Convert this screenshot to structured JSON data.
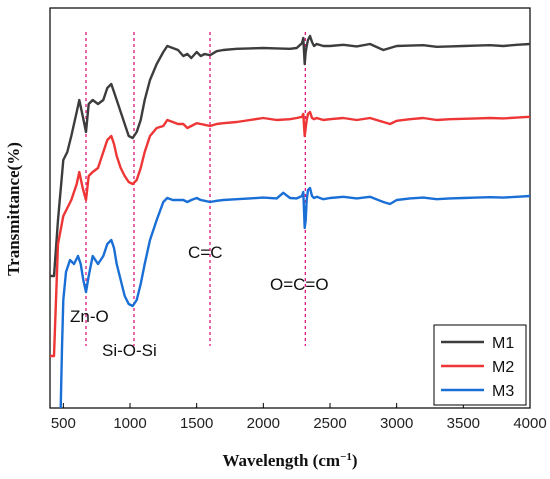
{
  "chart_data": {
    "type": "line",
    "title": "",
    "xlabel": "Wavelength (cm",
    "xlabel_sup": "−1",
    "xlabel_close": ")",
    "ylabel": "Transmittance(%)",
    "xlim": [
      400,
      4000
    ],
    "ylim": [
      0,
      1
    ],
    "xticks": [
      "500",
      "1000",
      "1500",
      "2000",
      "2500",
      "3000",
      "3500",
      "4000"
    ],
    "x_tick_values": [
      500,
      1000,
      1500,
      2000,
      2500,
      3000,
      3500,
      4000
    ],
    "y_ticks_labeled": false,
    "grid": false,
    "legend_position": "bottom-right",
    "series": [
      {
        "name": "M1",
        "color": "#3d3d3d",
        "x": [
          400,
          430,
          460,
          500,
          530,
          560,
          600,
          620,
          645,
          670,
          690,
          720,
          760,
          800,
          830,
          860,
          880,
          900,
          930,
          960,
          990,
          1020,
          1050,
          1080,
          1110,
          1150,
          1200,
          1250,
          1280,
          1320,
          1360,
          1400,
          1430,
          1460,
          1500,
          1530,
          1560,
          1600,
          1650,
          1700,
          1800,
          1900,
          2000,
          2100,
          2200,
          2250,
          2290,
          2300,
          2310,
          2318,
          2325,
          2335,
          2350,
          2365,
          2380,
          2400,
          2450,
          2500,
          2600,
          2700,
          2800,
          2900,
          2950,
          3000,
          3100,
          3200,
          3300,
          3400,
          3500,
          3600,
          3700,
          3800,
          3900,
          4000
        ],
        "y": [
          0.33,
          0.33,
          0.47,
          0.62,
          0.64,
          0.68,
          0.74,
          0.77,
          0.73,
          0.69,
          0.76,
          0.77,
          0.76,
          0.77,
          0.8,
          0.81,
          0.79,
          0.77,
          0.74,
          0.71,
          0.68,
          0.675,
          0.69,
          0.72,
          0.77,
          0.82,
          0.86,
          0.89,
          0.905,
          0.9,
          0.895,
          0.88,
          0.885,
          0.875,
          0.89,
          0.88,
          0.885,
          0.882,
          0.892,
          0.895,
          0.898,
          0.899,
          0.9,
          0.899,
          0.898,
          0.9,
          0.912,
          0.925,
          0.86,
          0.89,
          0.905,
          0.92,
          0.93,
          0.915,
          0.905,
          0.91,
          0.905,
          0.905,
          0.908,
          0.904,
          0.91,
          0.895,
          0.9,
          0.905,
          0.906,
          0.907,
          0.903,
          0.904,
          0.905,
          0.906,
          0.907,
          0.905,
          0.908,
          0.91
        ]
      },
      {
        "name": "M2",
        "color": "#ee3636",
        "x": [
          400,
          430,
          460,
          500,
          530,
          560,
          600,
          620,
          645,
          670,
          690,
          720,
          760,
          800,
          830,
          860,
          880,
          900,
          930,
          960,
          990,
          1020,
          1050,
          1080,
          1110,
          1150,
          1200,
          1250,
          1280,
          1320,
          1360,
          1400,
          1430,
          1460,
          1500,
          1530,
          1560,
          1600,
          1650,
          1700,
          1800,
          1900,
          2000,
          2100,
          2200,
          2250,
          2290,
          2300,
          2310,
          2318,
          2325,
          2335,
          2350,
          2365,
          2380,
          2400,
          2450,
          2500,
          2600,
          2700,
          2800,
          2900,
          2950,
          3000,
          3100,
          3200,
          3300,
          3400,
          3500,
          3600,
          3700,
          3800,
          3900,
          4000
        ],
        "y": [
          0.13,
          0.13,
          0.41,
          0.48,
          0.5,
          0.52,
          0.56,
          0.59,
          0.55,
          0.52,
          0.58,
          0.59,
          0.6,
          0.64,
          0.67,
          0.68,
          0.66,
          0.63,
          0.6,
          0.58,
          0.565,
          0.56,
          0.57,
          0.6,
          0.64,
          0.68,
          0.7,
          0.705,
          0.72,
          0.715,
          0.71,
          0.71,
          0.7,
          0.705,
          0.712,
          0.71,
          0.708,
          0.705,
          0.71,
          0.712,
          0.715,
          0.72,
          0.725,
          0.72,
          0.722,
          0.725,
          0.728,
          0.735,
          0.68,
          0.7,
          0.72,
          0.735,
          0.74,
          0.725,
          0.722,
          0.725,
          0.72,
          0.722,
          0.725,
          0.72,
          0.725,
          0.715,
          0.71,
          0.718,
          0.722,
          0.725,
          0.72,
          0.722,
          0.723,
          0.724,
          0.725,
          0.724,
          0.726,
          0.728
        ]
      },
      {
        "name": "M3",
        "color": "#1a6fd6",
        "x": [
          480,
          490,
          500,
          520,
          550,
          580,
          610,
          630,
          650,
          670,
          690,
          720,
          760,
          800,
          830,
          860,
          880,
          900,
          930,
          960,
          990,
          1020,
          1050,
          1080,
          1110,
          1150,
          1200,
          1250,
          1280,
          1320,
          1360,
          1400,
          1430,
          1460,
          1500,
          1530,
          1560,
          1600,
          1650,
          1700,
          1800,
          1900,
          2000,
          2100,
          2150,
          2200,
          2250,
          2290,
          2300,
          2310,
          2318,
          2325,
          2335,
          2350,
          2365,
          2380,
          2400,
          2450,
          2500,
          2600,
          2700,
          2800,
          2900,
          2950,
          3000,
          3100,
          3200,
          3300,
          3400,
          3500,
          3600,
          3700,
          3800,
          3900,
          4000
        ],
        "y": [
          0.0,
          0.15,
          0.27,
          0.34,
          0.37,
          0.36,
          0.38,
          0.36,
          0.32,
          0.29,
          0.33,
          0.38,
          0.36,
          0.38,
          0.41,
          0.42,
          0.4,
          0.36,
          0.32,
          0.28,
          0.26,
          0.255,
          0.27,
          0.31,
          0.36,
          0.42,
          0.47,
          0.515,
          0.525,
          0.52,
          0.52,
          0.52,
          0.515,
          0.52,
          0.525,
          0.52,
          0.518,
          0.515,
          0.518,
          0.52,
          0.522,
          0.524,
          0.526,
          0.524,
          0.538,
          0.525,
          0.524,
          0.53,
          0.54,
          0.45,
          0.47,
          0.52,
          0.545,
          0.55,
          0.53,
          0.525,
          0.528,
          0.522,
          0.525,
          0.528,
          0.524,
          0.528,
          0.515,
          0.51,
          0.52,
          0.524,
          0.526,
          0.522,
          0.524,
          0.525,
          0.526,
          0.527,
          0.526,
          0.528,
          0.53
        ]
      }
    ],
    "reference_lines": [
      {
        "x": 670,
        "color": "#e0157d"
      },
      {
        "x": 1030,
        "color": "#e0157d"
      },
      {
        "x": 1600,
        "color": "#e0157d"
      },
      {
        "x": 2315,
        "color": "#e0157d"
      }
    ],
    "annotations": [
      {
        "text": "Zn-O",
        "x": 670
      },
      {
        "text": "Si-O-Si",
        "x": 1030
      },
      {
        "text": "C=C",
        "x": 1600
      },
      {
        "text": "O=C=O",
        "x": 2315
      }
    ]
  }
}
